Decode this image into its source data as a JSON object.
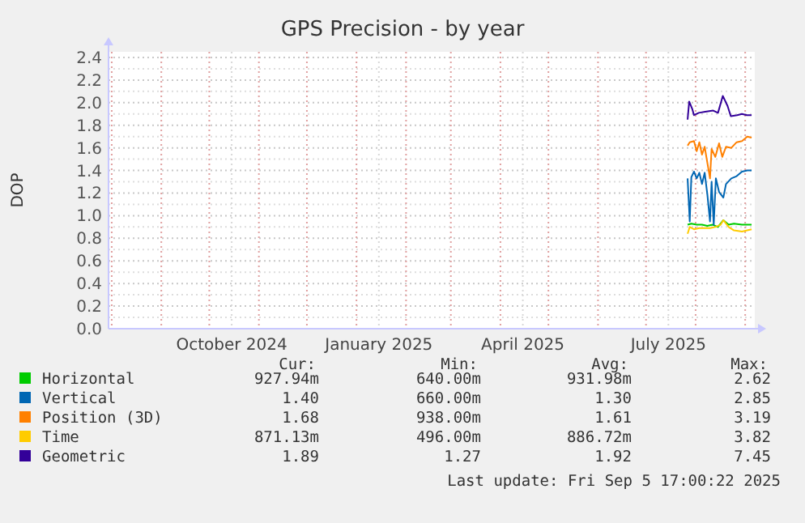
{
  "chart_data": {
    "type": "line",
    "title": "GPS Precision - by year",
    "ylabel": "DOP",
    "xlim": [
      "2024-07-30",
      "2025-09-07"
    ],
    "ylim": [
      0,
      2.45
    ],
    "xticks": [
      {
        "value": "2024-08-01",
        "label": null
      },
      {
        "value": "2024-09-01",
        "label": null
      },
      {
        "value": "2024-10-01",
        "label": null
      },
      {
        "value": "2024-10-15",
        "label": "October 2024"
      },
      {
        "value": "2024-11-01",
        "label": null
      },
      {
        "value": "2024-12-01",
        "label": null
      },
      {
        "value": "2025-01-01",
        "label": null
      },
      {
        "value": "2025-01-15",
        "label": "January 2025"
      },
      {
        "value": "2025-02-01",
        "label": null
      },
      {
        "value": "2025-03-01",
        "label": null
      },
      {
        "value": "2025-04-01",
        "label": null
      },
      {
        "value": "2025-04-15",
        "label": "April 2025"
      },
      {
        "value": "2025-05-01",
        "label": null
      },
      {
        "value": "2025-06-01",
        "label": null
      },
      {
        "value": "2025-07-01",
        "label": null
      },
      {
        "value": "2025-07-15",
        "label": "July 2025"
      },
      {
        "value": "2025-08-01",
        "label": null
      },
      {
        "value": "2025-09-01",
        "label": null
      }
    ],
    "yticks": [
      {
        "value": 0,
        "label": "0.0"
      },
      {
        "value": 0.1,
        "label": null
      },
      {
        "value": 0.2,
        "label": "0.2"
      },
      {
        "value": 0.3,
        "label": null
      },
      {
        "value": 0.4,
        "label": "0.4"
      },
      {
        "value": 0.5,
        "label": null
      },
      {
        "value": 0.6,
        "label": "0.6"
      },
      {
        "value": 0.7,
        "label": null
      },
      {
        "value": 0.8,
        "label": "0.8"
      },
      {
        "value": 0.9,
        "label": null
      },
      {
        "value": 1,
        "label": "1.0"
      },
      {
        "value": 1.1,
        "label": null
      },
      {
        "value": 1.2,
        "label": "1.2"
      },
      {
        "value": 1.3,
        "label": null
      },
      {
        "value": 1.4,
        "label": "1.4"
      },
      {
        "value": 1.5,
        "label": null
      },
      {
        "value": 1.6,
        "label": "1.6"
      },
      {
        "value": 1.7,
        "label": null
      },
      {
        "value": 1.8,
        "label": "1.8"
      },
      {
        "value": 1.9,
        "label": null
      },
      {
        "value": 2,
        "label": "2.0"
      },
      {
        "value": 2.1,
        "label": null
      },
      {
        "value": 2.2,
        "label": "2.2"
      },
      {
        "value": 2.3,
        "label": null
      },
      {
        "value": 2.4,
        "label": "2.4"
      }
    ],
    "grid": true,
    "legend": "bottom",
    "marker": "none",
    "line_style": "solid",
    "series": [
      {
        "name": "Horizontal",
        "color": "#00cc00",
        "x": [
          "2025-07-27",
          "2025-07-29T08:00",
          "2025-08-01T16:00",
          "2025-08-05",
          "2025-08-08T08:00",
          "2025-08-11T16:00",
          "2025-08-15",
          "2025-08-18T08:00",
          "2025-08-21T16:00",
          "2025-08-25",
          "2025-08-30",
          "2025-09-02T08:00",
          "2025-09-05"
        ],
        "values": [
          0.92,
          0.93,
          0.92,
          0.92,
          0.91,
          0.92,
          0.9,
          0.96,
          0.92,
          0.93,
          0.92,
          0.92,
          0.92
        ]
      },
      {
        "name": "Vertical",
        "color": "#0066b3",
        "x": [
          "2025-07-27",
          "2025-07-28T08:00",
          "2025-07-29T08:00",
          "2025-07-31",
          "2025-08-01T16:00",
          "2025-08-03T08:00",
          "2025-08-05",
          "2025-08-06T16:00",
          "2025-08-08T08:00",
          "2025-08-10",
          "2025-08-11",
          "2025-08-12T08:00",
          "2025-08-13T16:00",
          "2025-08-15T16:00",
          "2025-08-18T08:00",
          "2025-08-20",
          "2025-08-23T08:00",
          "2025-08-26T16:00",
          "2025-08-30",
          "2025-09-02T08:00",
          "2025-09-05"
        ],
        "values": [
          1.33,
          0.95,
          1.34,
          1.39,
          1.33,
          1.38,
          1.28,
          1.38,
          1.19,
          0.95,
          1.3,
          0.92,
          1.33,
          1.21,
          1.16,
          1.28,
          1.33,
          1.35,
          1.39,
          1.4,
          1.4
        ]
      },
      {
        "name": "Position (3D)",
        "color": "#ff8000",
        "x": [
          "2025-07-27",
          "2025-07-28T08:00",
          "2025-07-31",
          "2025-08-01T16:00",
          "2025-08-03T08:00",
          "2025-08-05",
          "2025-08-06T16:00",
          "2025-08-08T08:00",
          "2025-08-10",
          "2025-08-11",
          "2025-08-13T08:00",
          "2025-08-15T16:00",
          "2025-08-17T16:00",
          "2025-08-20",
          "2025-08-23T08:00",
          "2025-08-26T16:00",
          "2025-08-30",
          "2025-09-02T08:00",
          "2025-09-05"
        ],
        "values": [
          1.62,
          1.65,
          1.66,
          1.57,
          1.65,
          1.54,
          1.61,
          1.47,
          1.33,
          1.59,
          1.52,
          1.64,
          1.52,
          1.61,
          1.6,
          1.65,
          1.66,
          1.7,
          1.69
        ]
      },
      {
        "name": "Time",
        "color": "#ffcc00",
        "x": [
          "2025-07-27",
          "2025-07-28T08:00",
          "2025-07-31",
          "2025-08-03T08:00",
          "2025-08-06T16:00",
          "2025-08-10",
          "2025-08-13T08:00",
          "2025-08-16T16:00",
          "2025-08-18T08:00",
          "2025-08-21T16:00",
          "2025-08-25",
          "2025-08-30",
          "2025-09-05"
        ],
        "values": [
          0.84,
          0.9,
          0.88,
          0.89,
          0.89,
          0.89,
          0.9,
          0.92,
          0.96,
          0.9,
          0.87,
          0.86,
          0.88
        ]
      },
      {
        "name": "Geometric",
        "color": "#330099",
        "x": [
          "2025-07-27",
          "2025-07-28",
          "2025-07-30",
          "2025-07-31",
          "2025-08-03",
          "2025-08-07",
          "2025-08-12",
          "2025-08-15",
          "2025-08-18",
          "2025-08-21",
          "2025-08-23",
          "2025-08-27",
          "2025-08-30",
          "2025-09-02",
          "2025-09-05"
        ],
        "values": [
          1.85,
          2.01,
          1.94,
          1.89,
          1.91,
          1.92,
          1.93,
          1.91,
          2.06,
          1.97,
          1.88,
          1.89,
          1.9,
          1.89,
          1.89
        ]
      }
    ],
    "annotations": [
      "Cur:",
      "Min:",
      "Avg:",
      "Max:",
      "927.94m",
      "640.00m",
      "931.98m",
      "2.62",
      "1.40",
      "660.00m",
      "1.30",
      "2.85",
      "1.68",
      "938.00m",
      "1.61",
      "3.19",
      "871.13m",
      "496.00m",
      "886.72m",
      "3.82",
      "1.89",
      "1.27",
      "1.92",
      "7.45",
      "Last update: Fri Sep  5 17:00:22 2025"
    ]
  }
}
